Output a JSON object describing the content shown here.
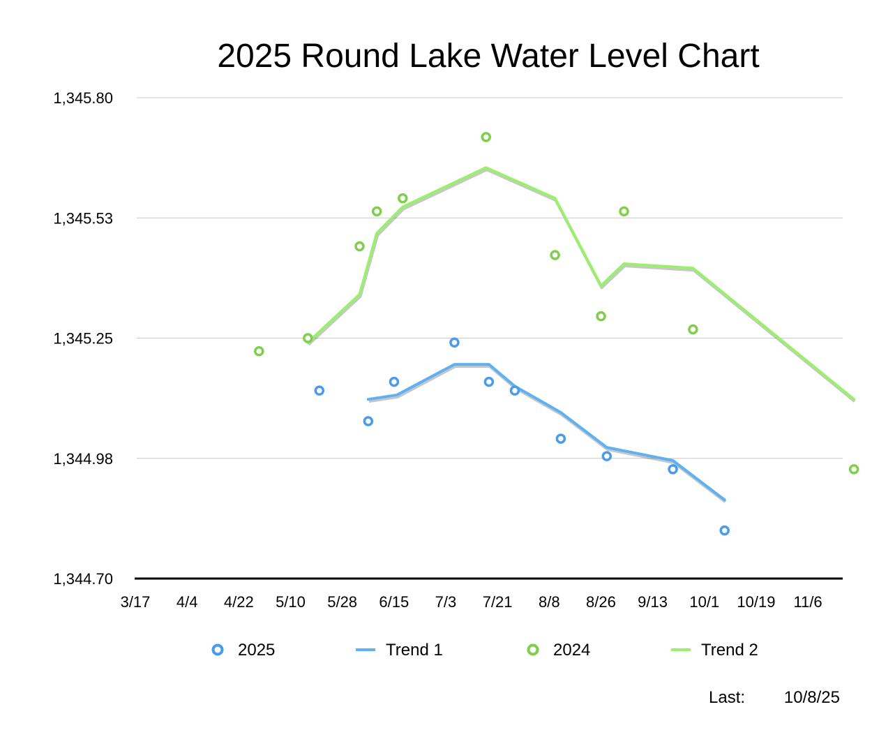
{
  "chart_data": {
    "type": "scatter",
    "title": "2025 Round Lake Water Level Chart",
    "xlabel": "",
    "ylabel": "",
    "ylim": [
      1344.7,
      1345.8
    ],
    "xlim": [
      0,
      252
    ],
    "y_ticks": [
      {
        "value": 1344.7,
        "label": "1,344.70"
      },
      {
        "value": 1344.975,
        "label": "1,344.98"
      },
      {
        "value": 1345.25,
        "label": "1,345.25"
      },
      {
        "value": 1345.525,
        "label": "1,345.53"
      },
      {
        "value": 1345.8,
        "label": "1,345.80"
      }
    ],
    "x_ticks": [
      {
        "day": 0,
        "label": "3/17"
      },
      {
        "day": 18,
        "label": "4/4"
      },
      {
        "day": 36,
        "label": "4/22"
      },
      {
        "day": 54,
        "label": "5/10"
      },
      {
        "day": 72,
        "label": "5/28"
      },
      {
        "day": 90,
        "label": "6/15"
      },
      {
        "day": 108,
        "label": "7/3"
      },
      {
        "day": 126,
        "label": "7/21"
      },
      {
        "day": 144,
        "label": "8/8"
      },
      {
        "day": 162,
        "label": "8/26"
      },
      {
        "day": 180,
        "label": "9/13"
      },
      {
        "day": 198,
        "label": "10/1"
      },
      {
        "day": 216,
        "label": "10/19"
      },
      {
        "day": 234,
        "label": "11/6"
      }
    ],
    "grid": true,
    "legend_position": "bottom",
    "series": [
      {
        "name": "2025",
        "kind": "points",
        "color": "#4a9bea",
        "points": [
          {
            "day": 65,
            "value": 1345.13
          },
          {
            "day": 82,
            "value": 1345.06
          },
          {
            "day": 91,
            "value": 1345.15
          },
          {
            "day": 112,
            "value": 1345.24
          },
          {
            "day": 124,
            "value": 1345.15
          },
          {
            "day": 133,
            "value": 1345.13
          },
          {
            "day": 149,
            "value": 1345.02
          },
          {
            "day": 165,
            "value": 1344.98
          },
          {
            "day": 188,
            "value": 1344.95
          },
          {
            "day": 206,
            "value": 1344.81
          }
        ]
      },
      {
        "name": "Trend 1",
        "kind": "line",
        "color": "#5fb1f2",
        "points": [
          {
            "day": 82,
            "value": 1345.11
          },
          {
            "day": 92,
            "value": 1345.12
          },
          {
            "day": 112,
            "value": 1345.19
          },
          {
            "day": 124,
            "value": 1345.19
          },
          {
            "day": 133,
            "value": 1345.14
          },
          {
            "day": 149,
            "value": 1345.08
          },
          {
            "day": 165,
            "value": 1345.0
          },
          {
            "day": 188,
            "value": 1344.97
          },
          {
            "day": 206,
            "value": 1344.88
          }
        ]
      },
      {
        "name": "2024",
        "kind": "points",
        "color": "#7fcf4c",
        "points": [
          {
            "day": 44,
            "value": 1345.22
          },
          {
            "day": 61,
            "value": 1345.25
          },
          {
            "day": 79,
            "value": 1345.46
          },
          {
            "day": 85,
            "value": 1345.54
          },
          {
            "day": 94,
            "value": 1345.57
          },
          {
            "day": 123,
            "value": 1345.71
          },
          {
            "day": 147,
            "value": 1345.44
          },
          {
            "day": 163,
            "value": 1345.3
          },
          {
            "day": 171,
            "value": 1345.54
          },
          {
            "day": 195,
            "value": 1345.27
          },
          {
            "day": 251,
            "value": 1344.95
          }
        ]
      },
      {
        "name": "Trend 2",
        "kind": "line",
        "color": "#9af06c",
        "points": [
          {
            "day": 61,
            "value": 1345.24
          },
          {
            "day": 79,
            "value": 1345.35
          },
          {
            "day": 85,
            "value": 1345.49
          },
          {
            "day": 94,
            "value": 1345.55
          },
          {
            "day": 123,
            "value": 1345.64
          },
          {
            "day": 147,
            "value": 1345.57
          },
          {
            "day": 163,
            "value": 1345.37
          },
          {
            "day": 171,
            "value": 1345.42
          },
          {
            "day": 195,
            "value": 1345.41
          },
          {
            "day": 251,
            "value": 1345.11
          }
        ]
      }
    ]
  },
  "legend": [
    {
      "label": "2025",
      "symbol": "circle",
      "color": "#4a9bea"
    },
    {
      "label": "Trend 1",
      "symbol": "line",
      "color": "#5fb1f2"
    },
    {
      "label": "2024",
      "symbol": "circle",
      "color": "#7fcf4c"
    },
    {
      "label": "Trend 2",
      "symbol": "line",
      "color": "#9af06c"
    }
  ],
  "footer": {
    "label": "Last:",
    "date": "10/8/25"
  }
}
